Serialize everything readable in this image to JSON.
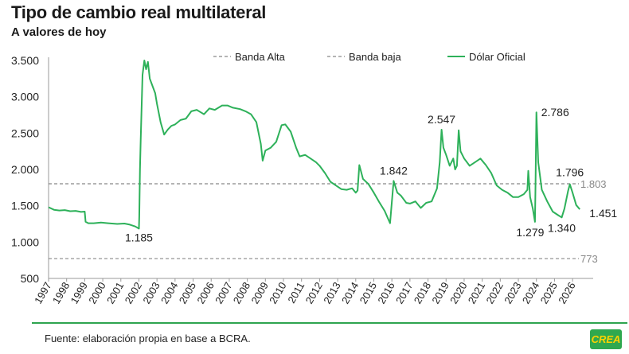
{
  "title": "Tipo de cambio real multilateral",
  "subtitle": "A valores de hoy",
  "source": "Fuente: elaboración propia en base a BCRA.",
  "logo_text": "CREA",
  "colors": {
    "series": "#2eb15a",
    "band": "#888888",
    "axis": "#999999",
    "footer": "#2ea44f",
    "logo_bg": "#2fa84f",
    "logo_text": "#ffd200"
  },
  "chart_data": {
    "type": "line",
    "title": "Tipo de cambio real multilateral",
    "subtitle": "A valores de hoy",
    "xlim": [
      1997,
      2026.7
    ],
    "ylim": [
      500,
      3500
    ],
    "y_ticks": [
      500,
      1000,
      1500,
      2000,
      2500,
      3000,
      3500
    ],
    "y_tick_labels": [
      "500",
      "1.000",
      "1.500",
      "2.000",
      "2.500",
      "3.000",
      "3.500"
    ],
    "x_tick_labels": [
      "1997",
      "1998",
      "1999",
      "2000",
      "2001",
      "2002",
      "2003",
      "2004",
      "2005",
      "2006",
      "2007",
      "2008",
      "2009",
      "2010",
      "2011",
      "2012",
      "2013",
      "2014",
      "2015",
      "2016",
      "2017",
      "2018",
      "2019",
      "2020",
      "2021",
      "2022",
      "2023",
      "2024",
      "2025",
      "2026"
    ],
    "legend": [
      "Banda Alta",
      "Banda baja",
      "Dólar Oficial"
    ],
    "legend_position": "top",
    "grid": false,
    "bands": [
      {
        "name": "Banda Alta",
        "value": 1803,
        "label": "1.803"
      },
      {
        "name": "Banda baja",
        "value": 773,
        "label": "773"
      }
    ],
    "series": [
      {
        "name": "Dólar Oficial",
        "points": [
          [
            1997.0,
            1480
          ],
          [
            1997.3,
            1445
          ],
          [
            1997.6,
            1435
          ],
          [
            1997.9,
            1440
          ],
          [
            1998.2,
            1425
          ],
          [
            1998.5,
            1430
          ],
          [
            1998.8,
            1415
          ],
          [
            1999.0,
            1420
          ],
          [
            1999.05,
            1280
          ],
          [
            1999.2,
            1260
          ],
          [
            1999.5,
            1260
          ],
          [
            1999.9,
            1270
          ],
          [
            2000.3,
            1260
          ],
          [
            2000.8,
            1250
          ],
          [
            2001.2,
            1255
          ],
          [
            2001.5,
            1240
          ],
          [
            2001.8,
            1215
          ],
          [
            2002.0,
            1185
          ],
          [
            2002.02,
            1350
          ],
          [
            2002.06,
            2000
          ],
          [
            2002.1,
            2400
          ],
          [
            2002.2,
            3300
          ],
          [
            2002.3,
            3500
          ],
          [
            2002.4,
            3380
          ],
          [
            2002.5,
            3480
          ],
          [
            2002.6,
            3250
          ],
          [
            2002.75,
            3150
          ],
          [
            2002.9,
            3050
          ],
          [
            2003.0,
            2900
          ],
          [
            2003.2,
            2650
          ],
          [
            2003.4,
            2480
          ],
          [
            2003.6,
            2550
          ],
          [
            2003.8,
            2600
          ],
          [
            2004.0,
            2620
          ],
          [
            2004.3,
            2680
          ],
          [
            2004.6,
            2700
          ],
          [
            2004.9,
            2800
          ],
          [
            2005.2,
            2820
          ],
          [
            2005.6,
            2760
          ],
          [
            2005.9,
            2840
          ],
          [
            2006.2,
            2820
          ],
          [
            2006.6,
            2880
          ],
          [
            2006.9,
            2880
          ],
          [
            2007.2,
            2850
          ],
          [
            2007.6,
            2830
          ],
          [
            2007.9,
            2800
          ],
          [
            2008.2,
            2760
          ],
          [
            2008.5,
            2650
          ],
          [
            2008.75,
            2350
          ],
          [
            2008.85,
            2120
          ],
          [
            2009.0,
            2260
          ],
          [
            2009.3,
            2300
          ],
          [
            2009.6,
            2380
          ],
          [
            2009.9,
            2610
          ],
          [
            2010.1,
            2620
          ],
          [
            2010.4,
            2520
          ],
          [
            2010.7,
            2300
          ],
          [
            2010.9,
            2180
          ],
          [
            2011.2,
            2200
          ],
          [
            2011.5,
            2150
          ],
          [
            2011.8,
            2100
          ],
          [
            2012.0,
            2050
          ],
          [
            2012.3,
            1950
          ],
          [
            2012.6,
            1830
          ],
          [
            2012.9,
            1780
          ],
          [
            2013.2,
            1730
          ],
          [
            2013.5,
            1720
          ],
          [
            2013.8,
            1740
          ],
          [
            2014.0,
            1680
          ],
          [
            2014.1,
            1710
          ],
          [
            2014.2,
            2060
          ],
          [
            2014.4,
            1870
          ],
          [
            2014.7,
            1800
          ],
          [
            2015.0,
            1680
          ],
          [
            2015.3,
            1550
          ],
          [
            2015.6,
            1430
          ],
          [
            2015.9,
            1260
          ],
          [
            2016.0,
            1560
          ],
          [
            2016.1,
            1842
          ],
          [
            2016.3,
            1680
          ],
          [
            2016.5,
            1640
          ],
          [
            2016.8,
            1540
          ],
          [
            2017.0,
            1530
          ],
          [
            2017.3,
            1560
          ],
          [
            2017.6,
            1470
          ],
          [
            2017.9,
            1540
          ],
          [
            2018.2,
            1560
          ],
          [
            2018.5,
            1740
          ],
          [
            2018.65,
            2100
          ],
          [
            2018.75,
            2547
          ],
          [
            2018.85,
            2300
          ],
          [
            2019.0,
            2200
          ],
          [
            2019.2,
            2050
          ],
          [
            2019.4,
            2150
          ],
          [
            2019.5,
            2000
          ],
          [
            2019.6,
            2050
          ],
          [
            2019.7,
            2540
          ],
          [
            2019.8,
            2250
          ],
          [
            2020.0,
            2150
          ],
          [
            2020.3,
            2050
          ],
          [
            2020.6,
            2100
          ],
          [
            2020.9,
            2150
          ],
          [
            2021.2,
            2060
          ],
          [
            2021.5,
            1950
          ],
          [
            2021.8,
            1780
          ],
          [
            2022.1,
            1720
          ],
          [
            2022.4,
            1680
          ],
          [
            2022.7,
            1620
          ],
          [
            2023.0,
            1620
          ],
          [
            2023.3,
            1660
          ],
          [
            2023.5,
            1720
          ],
          [
            2023.55,
            1980
          ],
          [
            2023.65,
            1620
          ],
          [
            2023.8,
            1460
          ],
          [
            2023.92,
            1279
          ],
          [
            2023.95,
            1800
          ],
          [
            2024.0,
            2786
          ],
          [
            2024.1,
            2100
          ],
          [
            2024.3,
            1720
          ],
          [
            2024.6,
            1560
          ],
          [
            2024.9,
            1420
          ],
          [
            2025.2,
            1370
          ],
          [
            2025.4,
            1340
          ],
          [
            2025.55,
            1460
          ],
          [
            2025.75,
            1700
          ],
          [
            2025.85,
            1796
          ],
          [
            2026.0,
            1680
          ],
          [
            2026.2,
            1510
          ],
          [
            2026.4,
            1451
          ]
        ]
      }
    ],
    "annotations": [
      {
        "x": 2002.0,
        "y": 1185,
        "label": "1.185"
      },
      {
        "x": 2016.1,
        "y": 1842,
        "label": "1.842"
      },
      {
        "x": 2018.75,
        "y": 2547,
        "label": "2.547"
      },
      {
        "x": 2024.0,
        "y": 2786,
        "label": "2.786"
      },
      {
        "x": 2023.92,
        "y": 1279,
        "label": "1.279"
      },
      {
        "x": 2025.4,
        "y": 1340,
        "label": "1.340"
      },
      {
        "x": 2025.85,
        "y": 1796,
        "label": "1.796"
      },
      {
        "x": 2026.4,
        "y": 1451,
        "label": "1.451"
      }
    ]
  }
}
